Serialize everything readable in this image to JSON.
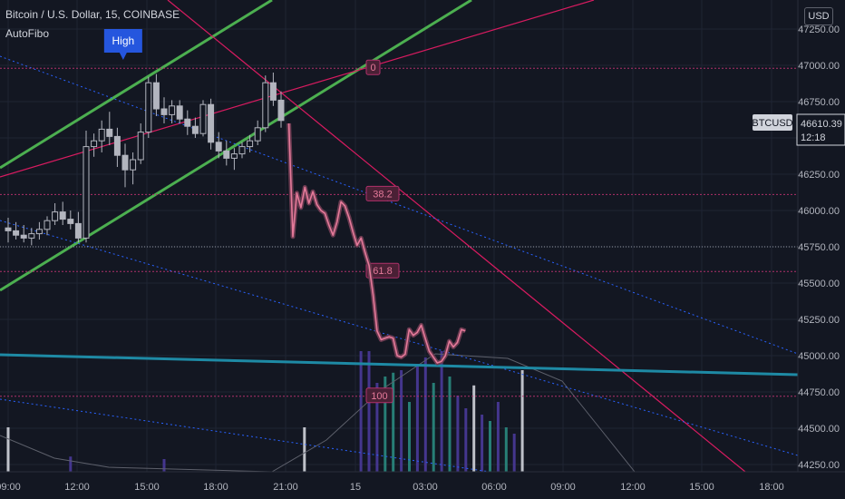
{
  "header": {
    "symbol_line": "Bitcoin / U.S. Dollar, 15, COINBASE",
    "indicator": "AutoFibo",
    "currency": "USD"
  },
  "price_tag": {
    "symbol": "BTCUSD",
    "price": "46610.39",
    "countdown": "12:18"
  },
  "colors": {
    "background": "#131722",
    "grid": "#1f2433",
    "candle": "#b2b5be",
    "channel": "#4caf50",
    "magenta": "#d81b60",
    "blue_dotted": "#2962ff",
    "teal_line": "#1e8aa5",
    "price_line": "#e57a9a"
  },
  "chart_data": {
    "type": "candlestick",
    "y_axis": {
      "ticks": [
        "47250.00",
        "47000.00",
        "46750.00",
        "46500.00",
        "46250.00",
        "46000.00",
        "45750.00",
        "45500.00",
        "45250.00",
        "45000.00",
        "44750.00",
        "44500.00",
        "44250.00"
      ],
      "range": [
        44225,
        47400
      ]
    },
    "x_axis": {
      "ticks": [
        "09:00",
        "12:00",
        "15:00",
        "18:00",
        "21:00",
        "15",
        "03:00",
        "06:00",
        "09:00",
        "12:00",
        "15:00",
        "18:00"
      ]
    },
    "fib_levels": [
      {
        "label": "0",
        "price": 46980
      },
      {
        "label": "38.2",
        "price": 46110
      },
      {
        "label": "61.8",
        "price": 45580
      },
      {
        "label": "100",
        "price": 44720
      }
    ],
    "annotations": [
      {
        "label": "High",
        "x_time": 14.75,
        "price": 46930
      }
    ],
    "candles": [
      {
        "t": 0,
        "o": 45880,
        "h": 45950,
        "l": 45780,
        "c": 45860
      },
      {
        "t": 1,
        "o": 45860,
        "h": 45920,
        "l": 45800,
        "c": 45830
      },
      {
        "t": 2,
        "o": 45830,
        "h": 45900,
        "l": 45780,
        "c": 45810
      },
      {
        "t": 3,
        "o": 45810,
        "h": 45880,
        "l": 45760,
        "c": 45840
      },
      {
        "t": 4,
        "o": 45840,
        "h": 45920,
        "l": 45800,
        "c": 45870
      },
      {
        "t": 5,
        "o": 45870,
        "h": 45960,
        "l": 45830,
        "c": 45930
      },
      {
        "t": 6,
        "o": 45930,
        "h": 46050,
        "l": 45900,
        "c": 45990
      },
      {
        "t": 7,
        "o": 45990,
        "h": 46060,
        "l": 45900,
        "c": 45940
      },
      {
        "t": 8,
        "o": 45940,
        "h": 46000,
        "l": 45870,
        "c": 45910
      },
      {
        "t": 9,
        "o": 45910,
        "h": 45990,
        "l": 45780,
        "c": 45810
      },
      {
        "t": 10,
        "o": 45810,
        "h": 46550,
        "l": 45780,
        "c": 46440
      },
      {
        "t": 11,
        "o": 46440,
        "h": 46530,
        "l": 46370,
        "c": 46480
      },
      {
        "t": 12,
        "o": 46480,
        "h": 46620,
        "l": 46400,
        "c": 46560
      },
      {
        "t": 13,
        "o": 46560,
        "h": 46680,
        "l": 46450,
        "c": 46510
      },
      {
        "t": 14,
        "o": 46510,
        "h": 46570,
        "l": 46300,
        "c": 46380
      },
      {
        "t": 15,
        "o": 46380,
        "h": 46460,
        "l": 46160,
        "c": 46280
      },
      {
        "t": 16,
        "o": 46280,
        "h": 46400,
        "l": 46180,
        "c": 46350
      },
      {
        "t": 17,
        "o": 46350,
        "h": 46600,
        "l": 46320,
        "c": 46540
      },
      {
        "t": 18,
        "o": 46540,
        "h": 46920,
        "l": 46500,
        "c": 46880
      },
      {
        "t": 19,
        "o": 46880,
        "h": 46940,
        "l": 46650,
        "c": 46700
      },
      {
        "t": 20,
        "o": 46700,
        "h": 46780,
        "l": 46600,
        "c": 46660
      },
      {
        "t": 21,
        "o": 46660,
        "h": 46760,
        "l": 46600,
        "c": 46720
      },
      {
        "t": 22,
        "o": 46720,
        "h": 46760,
        "l": 46600,
        "c": 46630
      },
      {
        "t": 23,
        "o": 46630,
        "h": 46690,
        "l": 46520,
        "c": 46580
      },
      {
        "t": 24,
        "o": 46580,
        "h": 46640,
        "l": 46500,
        "c": 46530
      },
      {
        "t": 25,
        "o": 46530,
        "h": 46760,
        "l": 46510,
        "c": 46730
      },
      {
        "t": 26,
        "o": 46730,
        "h": 46770,
        "l": 46420,
        "c": 46470
      },
      {
        "t": 27,
        "o": 46470,
        "h": 46540,
        "l": 46360,
        "c": 46410
      },
      {
        "t": 28,
        "o": 46410,
        "h": 46480,
        "l": 46310,
        "c": 46360
      },
      {
        "t": 29,
        "o": 46360,
        "h": 46430,
        "l": 46280,
        "c": 46390
      },
      {
        "t": 30,
        "o": 46390,
        "h": 46470,
        "l": 46360,
        "c": 46440
      },
      {
        "t": 31,
        "o": 46440,
        "h": 46520,
        "l": 46400,
        "c": 46480
      },
      {
        "t": 32,
        "o": 46480,
        "h": 46620,
        "l": 46450,
        "c": 46570
      },
      {
        "t": 33,
        "o": 46570,
        "h": 46930,
        "l": 46540,
        "c": 46880
      },
      {
        "t": 34,
        "o": 46880,
        "h": 46950,
        "l": 46720,
        "c": 46760
      },
      {
        "t": 35,
        "o": 46760,
        "h": 46820,
        "l": 46570,
        "c": 46620
      }
    ],
    "price_line": [
      [
        36,
        46600
      ],
      [
        36.5,
        45820
      ],
      [
        37,
        46120
      ],
      [
        37.5,
        46020
      ],
      [
        38,
        46160
      ],
      [
        38.5,
        46050
      ],
      [
        39,
        46130
      ],
      [
        39.5,
        46040
      ],
      [
        40,
        46000
      ],
      [
        40.5,
        45980
      ],
      [
        41,
        45900
      ],
      [
        41.5,
        45830
      ],
      [
        42,
        45920
      ],
      [
        42.5,
        46060
      ],
      [
        43,
        46030
      ],
      [
        43.5,
        45950
      ],
      [
        44,
        45850
      ],
      [
        44.5,
        45760
      ],
      [
        45,
        45810
      ],
      [
        45.5,
        45710
      ],
      [
        46,
        45620
      ],
      [
        46.5,
        45420
      ],
      [
        47,
        45170
      ],
      [
        47.5,
        45110
      ],
      [
        48,
        45120
      ],
      [
        48.5,
        45130
      ],
      [
        49,
        45120
      ],
      [
        49.5,
        45000
      ],
      [
        50,
        44990
      ],
      [
        50.5,
        45010
      ],
      [
        51,
        45180
      ],
      [
        51.5,
        45140
      ],
      [
        52,
        45160
      ],
      [
        52.5,
        45210
      ],
      [
        53,
        45120
      ],
      [
        53.5,
        45030
      ],
      [
        54,
        44990
      ],
      [
        54.5,
        44950
      ],
      [
        55,
        44960
      ],
      [
        55.5,
        45000
      ],
      [
        56,
        45100
      ],
      [
        56.5,
        45060
      ],
      [
        57,
        45090
      ],
      [
        57.5,
        45180
      ],
      [
        58,
        45170
      ]
    ],
    "volume": [
      {
        "t": 0,
        "v": 0.35,
        "c": "#d1d4dc"
      },
      {
        "t": 8,
        "v": 0.12,
        "c": "#4a3a9a"
      },
      {
        "t": 20,
        "v": 0.1,
        "c": "#4a3a9a"
      },
      {
        "t": 38,
        "v": 0.35,
        "c": "#d1d4dc"
      },
      {
        "t": 45,
        "v": 0.95,
        "c": "#4a3a9a"
      },
      {
        "t": 46,
        "v": 0.95,
        "c": "#4a3a9a"
      },
      {
        "t": 47,
        "v": 0.7,
        "c": "#4a3a9a"
      },
      {
        "t": 48,
        "v": 0.75,
        "c": "#2a8a80"
      },
      {
        "t": 49,
        "v": 0.78,
        "c": "#2a8a80"
      },
      {
        "t": 50,
        "v": 0.8,
        "c": "#4a3a9a"
      },
      {
        "t": 51,
        "v": 0.55,
        "c": "#2a8a80"
      },
      {
        "t": 52,
        "v": 0.85,
        "c": "#4a3a9a"
      },
      {
        "t": 53,
        "v": 0.9,
        "c": "#4a3a9a"
      },
      {
        "t": 54,
        "v": 0.7,
        "c": "#2a8a80"
      },
      {
        "t": 55,
        "v": 0.95,
        "c": "#4a3a9a"
      },
      {
        "t": 56,
        "v": 0.75,
        "c": "#2a8a80"
      },
      {
        "t": 57,
        "v": 0.6,
        "c": "#4a3a9a"
      },
      {
        "t": 58,
        "v": 0.5,
        "c": "#4a3a9a"
      },
      {
        "t": 59,
        "v": 0.68,
        "c": "#d1d4dc"
      },
      {
        "t": 60,
        "v": 0.45,
        "c": "#4a3a9a"
      },
      {
        "t": 61,
        "v": 0.4,
        "c": "#2a8a80"
      },
      {
        "t": 62,
        "v": 0.55,
        "c": "#4a3a9a"
      },
      {
        "t": 63,
        "v": 0.35,
        "c": "#2a8a80"
      },
      {
        "t": 64,
        "v": 0.3,
        "c": "#4a3a9a"
      },
      {
        "t": 65,
        "v": 0.8,
        "c": "#d1d4dc"
      }
    ]
  }
}
